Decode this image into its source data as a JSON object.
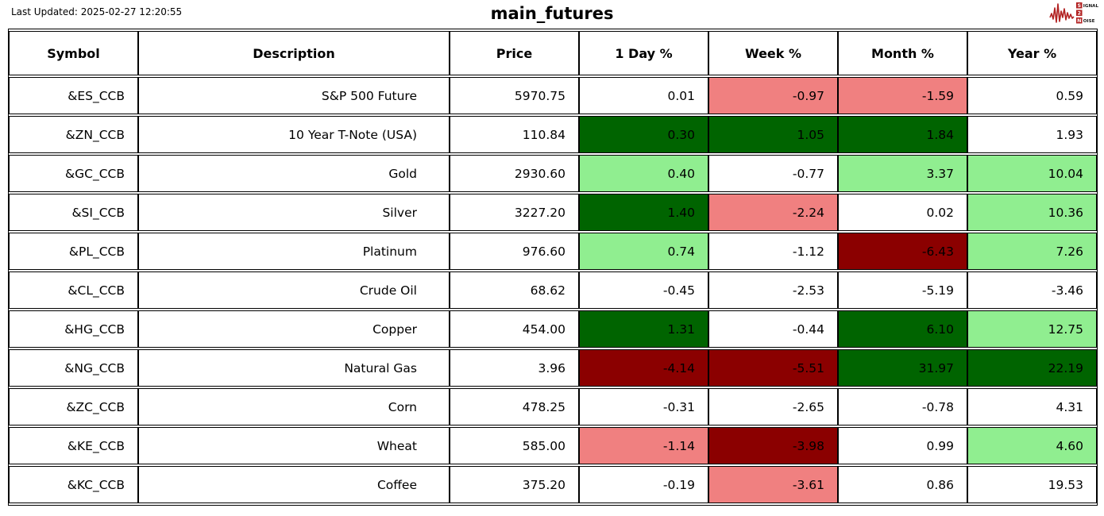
{
  "page": {
    "last_updated": "Last Updated: 2025-02-27 12:20:55",
    "title": "main_futures"
  },
  "logo": {
    "color": "#B22222",
    "word1_first": "S",
    "word1_rest": "IGNAL",
    "word2": "2",
    "word3_first": "N",
    "word3_rest": "OISE"
  },
  "colors": {
    "neutral": "#FFFFFF",
    "pos": "#90EE90",
    "pos_strong": "#006400",
    "neg": "#F08080",
    "neg_strong": "#8B0000",
    "border": "#000000"
  },
  "chart_data": {
    "type": "table",
    "title": "main_futures",
    "columns": [
      "Symbol",
      "Description",
      "Price",
      "1 Day %",
      "Week %",
      "Month %",
      "Year %"
    ],
    "rows": [
      {
        "symbol": "&ES_CCB",
        "description": "S&P 500 Future",
        "price": "5970.75",
        "pct": [
          {
            "v": "0.01",
            "c": "neutral"
          },
          {
            "v": "-0.97",
            "c": "neg"
          },
          {
            "v": "-1.59",
            "c": "neg"
          },
          {
            "v": "0.59",
            "c": "neutral"
          }
        ]
      },
      {
        "symbol": "&ZN_CCB",
        "description": "10 Year T-Note (USA)",
        "price": "110.84",
        "pct": [
          {
            "v": "0.30",
            "c": "pos_strong"
          },
          {
            "v": "1.05",
            "c": "pos_strong"
          },
          {
            "v": "1.84",
            "c": "pos_strong"
          },
          {
            "v": "1.93",
            "c": "neutral"
          }
        ]
      },
      {
        "symbol": "&GC_CCB",
        "description": "Gold",
        "price": "2930.60",
        "pct": [
          {
            "v": "0.40",
            "c": "pos"
          },
          {
            "v": "-0.77",
            "c": "neutral"
          },
          {
            "v": "3.37",
            "c": "pos"
          },
          {
            "v": "10.04",
            "c": "pos"
          }
        ]
      },
      {
        "symbol": "&SI_CCB",
        "description": "Silver",
        "price": "3227.20",
        "pct": [
          {
            "v": "1.40",
            "c": "pos_strong"
          },
          {
            "v": "-2.24",
            "c": "neg"
          },
          {
            "v": "0.02",
            "c": "neutral"
          },
          {
            "v": "10.36",
            "c": "pos"
          }
        ]
      },
      {
        "symbol": "&PL_CCB",
        "description": "Platinum",
        "price": "976.60",
        "pct": [
          {
            "v": "0.74",
            "c": "pos"
          },
          {
            "v": "-1.12",
            "c": "neutral"
          },
          {
            "v": "-6.43",
            "c": "neg_strong"
          },
          {
            "v": "7.26",
            "c": "pos"
          }
        ]
      },
      {
        "symbol": "&CL_CCB",
        "description": "Crude Oil",
        "price": "68.62",
        "pct": [
          {
            "v": "-0.45",
            "c": "neutral"
          },
          {
            "v": "-2.53",
            "c": "neutral"
          },
          {
            "v": "-5.19",
            "c": "neutral"
          },
          {
            "v": "-3.46",
            "c": "neutral"
          }
        ]
      },
      {
        "symbol": "&HG_CCB",
        "description": "Copper",
        "price": "454.00",
        "pct": [
          {
            "v": "1.31",
            "c": "pos_strong"
          },
          {
            "v": "-0.44",
            "c": "neutral"
          },
          {
            "v": "6.10",
            "c": "pos_strong"
          },
          {
            "v": "12.75",
            "c": "pos"
          }
        ]
      },
      {
        "symbol": "&NG_CCB",
        "description": "Natural Gas",
        "price": "3.96",
        "pct": [
          {
            "v": "-4.14",
            "c": "neg_strong"
          },
          {
            "v": "-5.51",
            "c": "neg_strong"
          },
          {
            "v": "31.97",
            "c": "pos_strong"
          },
          {
            "v": "22.19",
            "c": "pos_strong"
          }
        ]
      },
      {
        "symbol": "&ZC_CCB",
        "description": "Corn",
        "price": "478.25",
        "pct": [
          {
            "v": "-0.31",
            "c": "neutral"
          },
          {
            "v": "-2.65",
            "c": "neutral"
          },
          {
            "v": "-0.78",
            "c": "neutral"
          },
          {
            "v": "4.31",
            "c": "neutral"
          }
        ]
      },
      {
        "symbol": "&KE_CCB",
        "description": "Wheat",
        "price": "585.00",
        "pct": [
          {
            "v": "-1.14",
            "c": "neg"
          },
          {
            "v": "-3.98",
            "c": "neg_strong"
          },
          {
            "v": "0.99",
            "c": "neutral"
          },
          {
            "v": "4.60",
            "c": "pos"
          }
        ]
      },
      {
        "symbol": "&KC_CCB",
        "description": "Coffee",
        "price": "375.20",
        "pct": [
          {
            "v": "-0.19",
            "c": "neutral"
          },
          {
            "v": "-3.61",
            "c": "neg"
          },
          {
            "v": "0.86",
            "c": "neutral"
          },
          {
            "v": "19.53",
            "c": "neutral"
          }
        ]
      }
    ]
  }
}
